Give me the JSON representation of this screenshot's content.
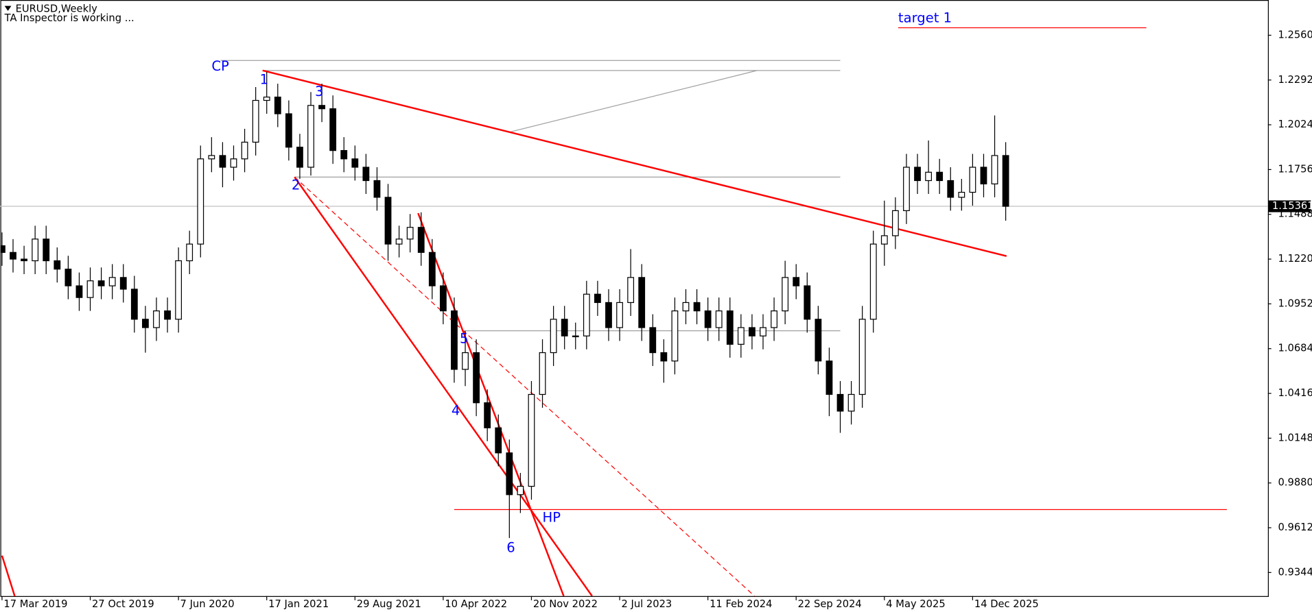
{
  "chart_data": {
    "type": "candlestick",
    "title": "EURUSD,Weekly",
    "subtitle": "TA Inspector is working ...",
    "xlim": [
      -0.6,
      459.1
    ],
    "ylim": [
      0.9203,
      1.2771
    ],
    "xticks": [
      {
        "value": 0,
        "label": "17 Mar 2019"
      },
      {
        "value": 32,
        "label": "27 Oct 2019"
      },
      {
        "value": 64,
        "label": "7 Jun 2020"
      },
      {
        "value": 96,
        "label": "17 Jan 2021"
      },
      {
        "value": 128,
        "label": "29 Aug 2021"
      },
      {
        "value": 160,
        "label": "10 Apr 2022"
      },
      {
        "value": 192,
        "label": "20 Nov 2022"
      },
      {
        "value": 224,
        "label": "2 Jul 2023"
      },
      {
        "value": 256,
        "label": "11 Feb 2024"
      },
      {
        "value": 288,
        "label": "22 Sep 2024"
      },
      {
        "value": 320,
        "label": "4 May 2025"
      },
      {
        "value": 352,
        "label": "14 Dec 2025"
      }
    ],
    "yticks": [
      {
        "value": 1.256,
        "label": "1.25600"
      },
      {
        "value": 1.2292,
        "label": "1.22920"
      },
      {
        "value": 1.2024,
        "label": "1.20240"
      },
      {
        "value": 1.1756,
        "label": "1.17560"
      },
      {
        "value": 1.1488,
        "label": "1.14880"
      },
      {
        "value": 1.122,
        "label": "1.12200"
      },
      {
        "value": 1.0952,
        "label": "1.09520"
      },
      {
        "value": 1.0684,
        "label": "1.06840"
      },
      {
        "value": 1.0416,
        "label": "1.04160"
      },
      {
        "value": 1.0148,
        "label": "1.01480"
      },
      {
        "value": 0.988,
        "label": "0.98800"
      },
      {
        "value": 0.9612,
        "label": "0.96120"
      },
      {
        "value": 0.9344,
        "label": "0.93440"
      }
    ],
    "last_price": {
      "value": 1.15361,
      "label": "1.15361"
    },
    "candles": {
      "x": [
        0,
        4,
        8,
        12,
        16,
        20,
        24,
        28,
        32,
        36,
        40,
        44,
        48,
        52,
        56,
        60,
        64,
        68,
        72,
        76,
        80,
        84,
        88,
        92,
        96,
        100,
        104,
        108,
        112,
        116,
        120,
        124,
        128,
        132,
        136,
        140,
        144,
        148,
        152,
        156,
        160,
        164,
        168,
        172,
        176,
        180,
        184,
        188,
        192,
        196,
        200,
        204,
        208,
        212,
        216,
        220,
        224,
        228,
        232,
        236,
        240,
        244,
        248,
        252,
        256,
        260,
        264,
        268,
        272,
        276,
        280,
        284,
        288,
        292,
        296,
        300,
        304,
        308,
        312,
        316,
        320,
        324,
        328,
        332,
        336,
        340,
        344,
        348,
        352,
        356,
        360,
        364
      ],
      "open": [
        1.13,
        1.126,
        1.122,
        1.121,
        1.134,
        1.121,
        1.116,
        1.106,
        1.099,
        1.109,
        1.106,
        1.111,
        1.104,
        1.086,
        1.081,
        1.091,
        1.086,
        1.121,
        1.131,
        1.182,
        1.184,
        1.177,
        1.182,
        1.192,
        1.217,
        1.219,
        1.209,
        1.189,
        1.177,
        1.214,
        1.212,
        1.187,
        1.182,
        1.177,
        1.169,
        1.159,
        1.131,
        1.134,
        1.141,
        1.126,
        1.106,
        1.091,
        1.056,
        1.066,
        1.036,
        1.021,
        1.006,
        0.981,
        0.986,
        1.041,
        1.066,
        1.086,
        1.076,
        1.076,
        1.101,
        1.096,
        1.081,
        1.096,
        1.111,
        1.081,
        1.066,
        1.061,
        1.091,
        1.096,
        1.091,
        1.081,
        1.091,
        1.071,
        1.081,
        1.076,
        1.081,
        1.091,
        1.111,
        1.106,
        1.086,
        1.061,
        1.041,
        1.031,
        1.041,
        1.086,
        1.131,
        1.136,
        1.151,
        1.177,
        1.169,
        1.174,
        1.169,
        1.159,
        1.162,
        1.177,
        1.167,
        1.184
      ],
      "high": [
        1.138,
        1.134,
        1.13,
        1.142,
        1.142,
        1.129,
        1.124,
        1.114,
        1.117,
        1.117,
        1.119,
        1.119,
        1.112,
        1.094,
        1.099,
        1.099,
        1.129,
        1.139,
        1.19,
        1.195,
        1.192,
        1.19,
        1.2,
        1.225,
        1.234,
        1.227,
        1.217,
        1.197,
        1.222,
        1.227,
        1.22,
        1.195,
        1.19,
        1.185,
        1.177,
        1.167,
        1.142,
        1.149,
        1.15,
        1.134,
        1.114,
        1.099,
        1.079,
        1.074,
        1.044,
        1.029,
        1.014,
        0.994,
        1.049,
        1.074,
        1.094,
        1.094,
        1.084,
        1.109,
        1.109,
        1.104,
        1.104,
        1.128,
        1.119,
        1.089,
        1.074,
        1.099,
        1.104,
        1.104,
        1.099,
        1.099,
        1.099,
        1.089,
        1.089,
        1.089,
        1.099,
        1.121,
        1.119,
        1.114,
        1.094,
        1.069,
        1.049,
        1.049,
        1.094,
        1.139,
        1.157,
        1.159,
        1.185,
        1.185,
        1.193,
        1.182,
        1.177,
        1.17,
        1.185,
        1.185,
        1.208,
        1.192
      ],
      "low": [
        1.118,
        1.114,
        1.113,
        1.113,
        1.113,
        1.108,
        1.098,
        1.091,
        1.091,
        1.098,
        1.098,
        1.096,
        1.078,
        1.066,
        1.073,
        1.078,
        1.078,
        1.113,
        1.123,
        1.174,
        1.165,
        1.169,
        1.174,
        1.184,
        1.209,
        1.201,
        1.181,
        1.17,
        1.172,
        1.204,
        1.179,
        1.174,
        1.169,
        1.161,
        1.151,
        1.121,
        1.123,
        1.126,
        1.118,
        1.098,
        1.083,
        1.048,
        1.046,
        1.028,
        1.013,
        0.998,
        0.955,
        0.97,
        0.978,
        1.033,
        1.058,
        1.068,
        1.068,
        1.068,
        1.088,
        1.073,
        1.073,
        1.088,
        1.073,
        1.058,
        1.048,
        1.053,
        1.083,
        1.083,
        1.073,
        1.073,
        1.063,
        1.063,
        1.068,
        1.068,
        1.073,
        1.083,
        1.098,
        1.078,
        1.053,
        1.028,
        1.018,
        1.023,
        1.033,
        1.078,
        1.118,
        1.128,
        1.143,
        1.161,
        1.161,
        1.161,
        1.151,
        1.151,
        1.154,
        1.159,
        1.159,
        1.145
      ],
      "close": [
        1.126,
        1.122,
        1.121,
        1.134,
        1.121,
        1.116,
        1.106,
        1.099,
        1.109,
        1.106,
        1.111,
        1.104,
        1.086,
        1.081,
        1.091,
        1.086,
        1.121,
        1.131,
        1.182,
        1.184,
        1.177,
        1.182,
        1.192,
        1.217,
        1.219,
        1.209,
        1.189,
        1.177,
        1.214,
        1.212,
        1.187,
        1.182,
        1.177,
        1.169,
        1.159,
        1.131,
        1.134,
        1.141,
        1.126,
        1.106,
        1.091,
        1.056,
        1.066,
        1.036,
        1.021,
        1.006,
        0.981,
        0.986,
        1.041,
        1.066,
        1.086,
        1.076,
        1.076,
        1.101,
        1.096,
        1.081,
        1.096,
        1.111,
        1.081,
        1.066,
        1.061,
        1.091,
        1.096,
        1.091,
        1.081,
        1.091,
        1.071,
        1.081,
        1.076,
        1.081,
        1.091,
        1.111,
        1.106,
        1.086,
        1.061,
        1.041,
        1.031,
        1.041,
        1.086,
        1.131,
        1.136,
        1.151,
        1.177,
        1.169,
        1.174,
        1.169,
        1.159,
        1.162,
        1.177,
        1.167,
        1.184,
        1.15361
      ]
    },
    "lines": [
      {
        "x": [
          -0.6,
          459.1
        ],
        "y": [
          1.15361,
          1.15361
        ],
        "color": "#c0c0c0",
        "width": 1,
        "dashed": false
      },
      {
        "x": [
          79.3,
          304
        ],
        "y": [
          1.2409,
          1.2409
        ],
        "color": "#a0a0a0",
        "width": 1,
        "dashed": false
      },
      {
        "x": [
          94.5,
          304
        ],
        "y": [
          1.2349,
          1.2349
        ],
        "color": "#a0a0a0",
        "width": 1,
        "dashed": false
      },
      {
        "x": [
          184.5,
          273.8
        ],
        "y": [
          1.1982,
          1.2349
        ],
        "color": "#a0a0a0",
        "width": 1,
        "dashed": false
      },
      {
        "x": [
          106.1,
          304
        ],
        "y": [
          1.1711,
          1.1711
        ],
        "color": "#a0a0a0",
        "width": 1,
        "dashed": false
      },
      {
        "x": [
          167,
          304
        ],
        "y": [
          1.0791,
          1.0791
        ],
        "color": "#a0a0a0",
        "width": 1,
        "dashed": false
      },
      {
        "x": [
          94.5,
          364.3
        ],
        "y": [
          1.2349,
          1.1238
        ],
        "color": "#ff0000",
        "width": 2,
        "dashed": false
      },
      {
        "x": [
          106.1,
          214
        ],
        "y": [
          1.1711,
          0.9203
        ],
        "color": "#ff0000",
        "width": 2,
        "dashed": false
      },
      {
        "x": [
          106.1,
          272.9
        ],
        "y": [
          1.1711,
          0.9203
        ],
        "color": "#ff0000",
        "width": 1,
        "dashed": true
      },
      {
        "x": [
          150.9,
          203.7
        ],
        "y": [
          1.1495,
          0.9203
        ],
        "color": "#ff0000",
        "width": 2,
        "dashed": false
      },
      {
        "x": [
          0,
          4.6
        ],
        "y": [
          0.9445,
          0.9203
        ],
        "color": "#ff0000",
        "width": 2,
        "dashed": false
      },
      {
        "x": [
          164,
          444.2
        ],
        "y": [
          0.9721,
          0.9721
        ],
        "color": "#ff0000",
        "width": 1,
        "dashed": false
      },
      {
        "x": [
          325,
          415
        ],
        "y": [
          1.2605,
          1.2605
        ],
        "color": "#ff0000",
        "width": 1,
        "dashed": false
      }
    ],
    "labels": [
      {
        "text": "CP",
        "x": 76,
        "y": 1.237,
        "color": "#0000ff"
      },
      {
        "text": "1",
        "x": 93.5,
        "y": 1.229,
        "color": "#0000ff"
      },
      {
        "text": "2",
        "x": 105,
        "y": 1.166,
        "color": "#0000ff"
      },
      {
        "text": "3",
        "x": 113.5,
        "y": 1.222,
        "color": "#0000ff"
      },
      {
        "text": "4",
        "x": 163,
        "y": 1.031,
        "color": "#0000ff"
      },
      {
        "text": "5",
        "x": 166,
        "y": 1.074,
        "color": "#0000ff"
      },
      {
        "text": "6",
        "x": 183,
        "y": 0.949,
        "color": "#0000ff"
      },
      {
        "text": "HP",
        "x": 196,
        "y": 0.967,
        "color": "#0000ff"
      },
      {
        "text": "target 1",
        "x": 325,
        "y": 1.266,
        "color": "#0000ff"
      }
    ],
    "up_color": "#ffffff",
    "down_color": "#000000"
  }
}
